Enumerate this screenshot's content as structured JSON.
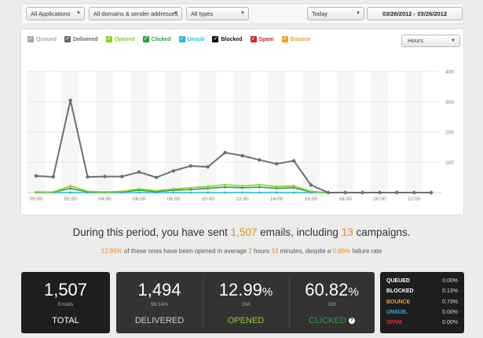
{
  "filters": {
    "applications": "All Applications",
    "domains": "All domains & sender addresses",
    "types": "All types",
    "period": "Today",
    "date_from": "03/26/2012",
    "date_to": "03/26/2012"
  },
  "chart_controls": {
    "granularity": "Hours",
    "legend": [
      {
        "label": "Queued",
        "color": "#a8a8a8"
      },
      {
        "label": "Delivered",
        "color": "#666666"
      },
      {
        "label": "Opened",
        "color": "#8bcf2e"
      },
      {
        "label": "Clicked",
        "color": "#2ea043"
      },
      {
        "label": "Unsub",
        "color": "#27b6e0"
      },
      {
        "label": "Blocked",
        "color": "#111111"
      },
      {
        "label": "Spam",
        "color": "#d62728"
      },
      {
        "label": "Bounce",
        "color": "#f0a030"
      }
    ]
  },
  "chart_data": {
    "type": "line",
    "x": [
      "00:00",
      "01:00",
      "02:00",
      "03:00",
      "04:00",
      "05:00",
      "06:00",
      "07:00",
      "08:00",
      "09:00",
      "10:00",
      "11:00",
      "12:00",
      "13:00",
      "14:00",
      "15:00",
      "16:00",
      "17:00",
      "18:00",
      "19:00",
      "20:00",
      "21:00",
      "22:00",
      "23:00"
    ],
    "x_ticks": [
      "00:00",
      "02:00",
      "04:00",
      "06:00",
      "08:00",
      "10:00",
      "12:00",
      "14:00",
      "16:00",
      "18:00",
      "20:00",
      "22:00"
    ],
    "y_ticks": [
      "100",
      "200",
      "300",
      "400"
    ],
    "ylim": [
      0,
      400
    ],
    "series": [
      {
        "name": "Delivered",
        "color": "#6e6e6e",
        "values": [
          55,
          52,
          305,
          52,
          53,
          53,
          68,
          50,
          72,
          88,
          85,
          132,
          122,
          108,
          95,
          105,
          25,
          0,
          0,
          0,
          0,
          0,
          0,
          0
        ]
      },
      {
        "name": "Opened",
        "color": "#8bcf2e",
        "values": [
          2,
          2,
          22,
          4,
          2,
          4,
          12,
          6,
          12,
          16,
          20,
          26,
          22,
          26,
          20,
          22,
          4,
          0,
          0,
          0,
          0,
          0,
          0,
          0
        ]
      },
      {
        "name": "Clicked",
        "color": "#2ea043",
        "values": [
          1,
          1,
          14,
          2,
          1,
          2,
          8,
          3,
          8,
          10,
          14,
          18,
          16,
          18,
          14,
          16,
          2,
          0,
          0,
          0,
          0,
          0,
          0,
          0
        ]
      },
      {
        "name": "Unsub",
        "color": "#27b6e0",
        "values": [
          0,
          0,
          0,
          0,
          0,
          0,
          0,
          0,
          0,
          0,
          0,
          0,
          0,
          0,
          0,
          0,
          0,
          0,
          0,
          0,
          0,
          0,
          0,
          0
        ]
      }
    ]
  },
  "summary": {
    "line1_prefix": "During this period, you have sent ",
    "emails_sent": "1,507",
    "line1_middle": " emails, including ",
    "campaigns": "13",
    "line1_suffix": " campaigns.",
    "open_rate": "12.99%",
    "line2_a": " of these ones have been opened in average ",
    "hours": "2",
    "line2_b": " hours ",
    "minutes": "33",
    "line2_c": " minutes, despite a ",
    "failure_rate": "0.86%",
    "line2_d": " failure rate"
  },
  "stats": {
    "total": {
      "value": "1,507",
      "sub": "Emails",
      "label": "TOTAL"
    },
    "delivered": {
      "value": "1,494",
      "sub": "99.14%",
      "label": "DELIVERED"
    },
    "opened": {
      "value": "12.99",
      "unit": "%",
      "sub": "194",
      "label": "OPENED"
    },
    "clicked": {
      "value": "60.82",
      "unit": "%",
      "sub": "118",
      "label": "CLICKED",
      "help": "?"
    }
  },
  "rates": [
    {
      "name": "QUEUED",
      "value": "0.00%",
      "color": "#ffffff"
    },
    {
      "name": "BLOCKED",
      "value": "0.13%",
      "color": "#ffffff"
    },
    {
      "name": "BOUNCE",
      "value": "0.73%",
      "color": "#f0a030"
    },
    {
      "name": "UNSUB.",
      "value": "0.00%",
      "color": "#27b6e0"
    },
    {
      "name": "SPAM",
      "value": "0.00%",
      "color": "#e03030"
    }
  ],
  "colors": {
    "opened": "#8bcf2e",
    "clicked": "#2ea043",
    "highlight": "#e8901a"
  }
}
